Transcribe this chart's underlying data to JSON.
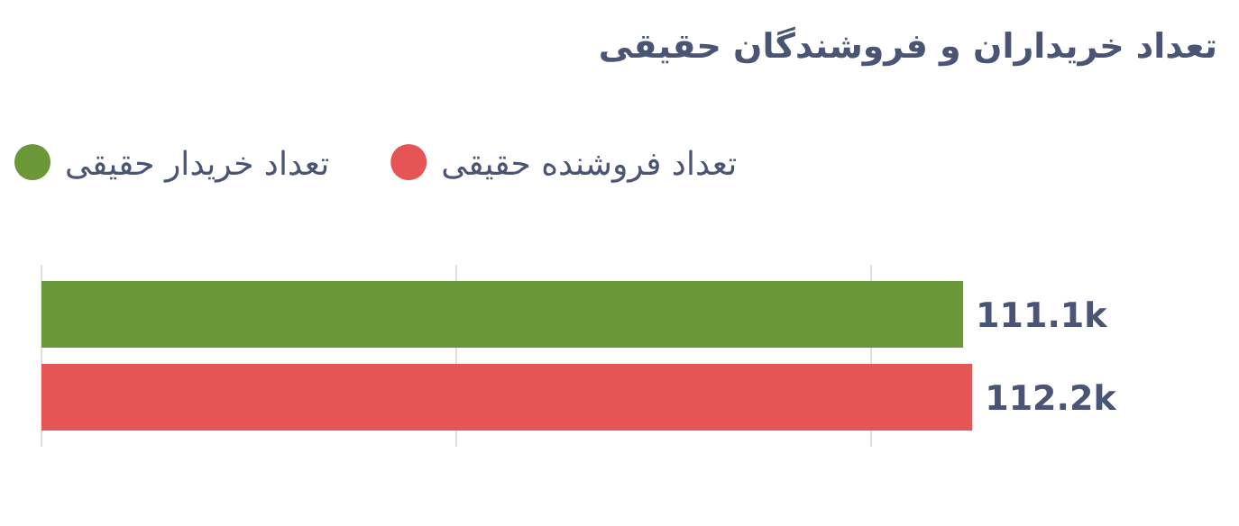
{
  "chart_data": {
    "type": "bar",
    "orientation": "horizontal",
    "title": "تعداد خریداران و فروشندگان حقیقی",
    "categories": [
      null
    ],
    "series": [
      {
        "name": "تعداد خریدار حقیقی",
        "color": "#6a9737",
        "values": [
          111100
        ],
        "value_labels": [
          "111.1k"
        ]
      },
      {
        "name": "تعداد فروشنده حقیقی",
        "color": "#e55555",
        "values": [
          112200
        ],
        "value_labels": [
          "112.2k"
        ]
      }
    ],
    "ref_lines": [
      {
        "axis": "x",
        "value": 50000,
        "color": "#e0e0e0"
      },
      {
        "axis": "x",
        "value": 100000,
        "color": "#e0e0e0"
      }
    ],
    "legend": "top left"
  }
}
